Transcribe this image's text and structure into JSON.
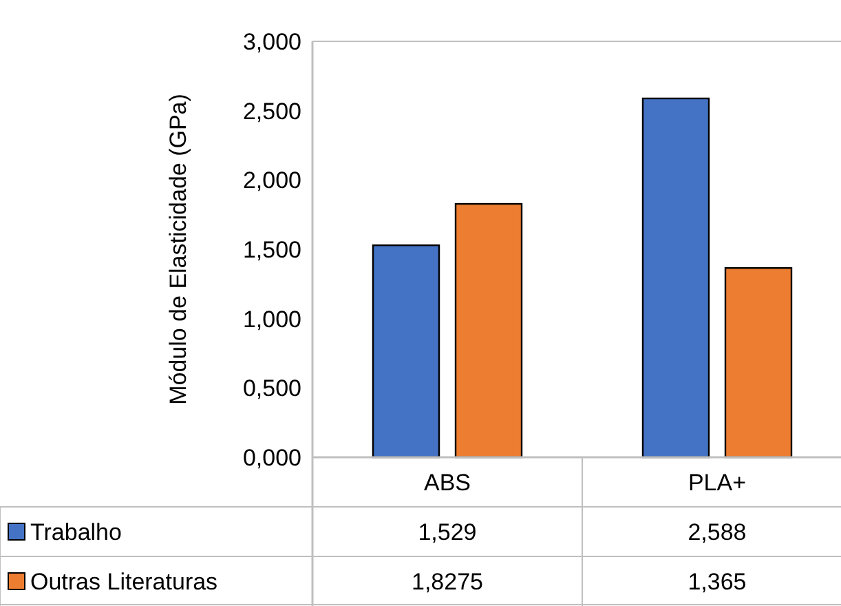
{
  "chart_data": {
    "type": "bar",
    "ylabel": "Módulo de Elasticidade (GPa)",
    "categories": [
      "ABS",
      "PLA+"
    ],
    "series": [
      {
        "name": "Trabalho",
        "color": "#4472c4",
        "values": [
          1.529,
          2.588
        ],
        "value_labels": [
          "1,529",
          "2,588"
        ]
      },
      {
        "name": "Outras Literaturas",
        "color": "#ed7d31",
        "values": [
          1.8275,
          1.365
        ],
        "value_labels": [
          "1,8275",
          "1,365"
        ]
      }
    ],
    "ylim": [
      0,
      3
    ],
    "yticks": [
      {
        "value": 0,
        "label": "0,000"
      },
      {
        "value": 0.5,
        "label": "0,500"
      },
      {
        "value": 1,
        "label": "1,000"
      },
      {
        "value": 1.5,
        "label": "1,500"
      },
      {
        "value": 2,
        "label": "2,000"
      },
      {
        "value": 2.5,
        "label": "2,500"
      },
      {
        "value": 3,
        "label": "3,000"
      }
    ],
    "grid": false,
    "legend": "bottom"
  }
}
